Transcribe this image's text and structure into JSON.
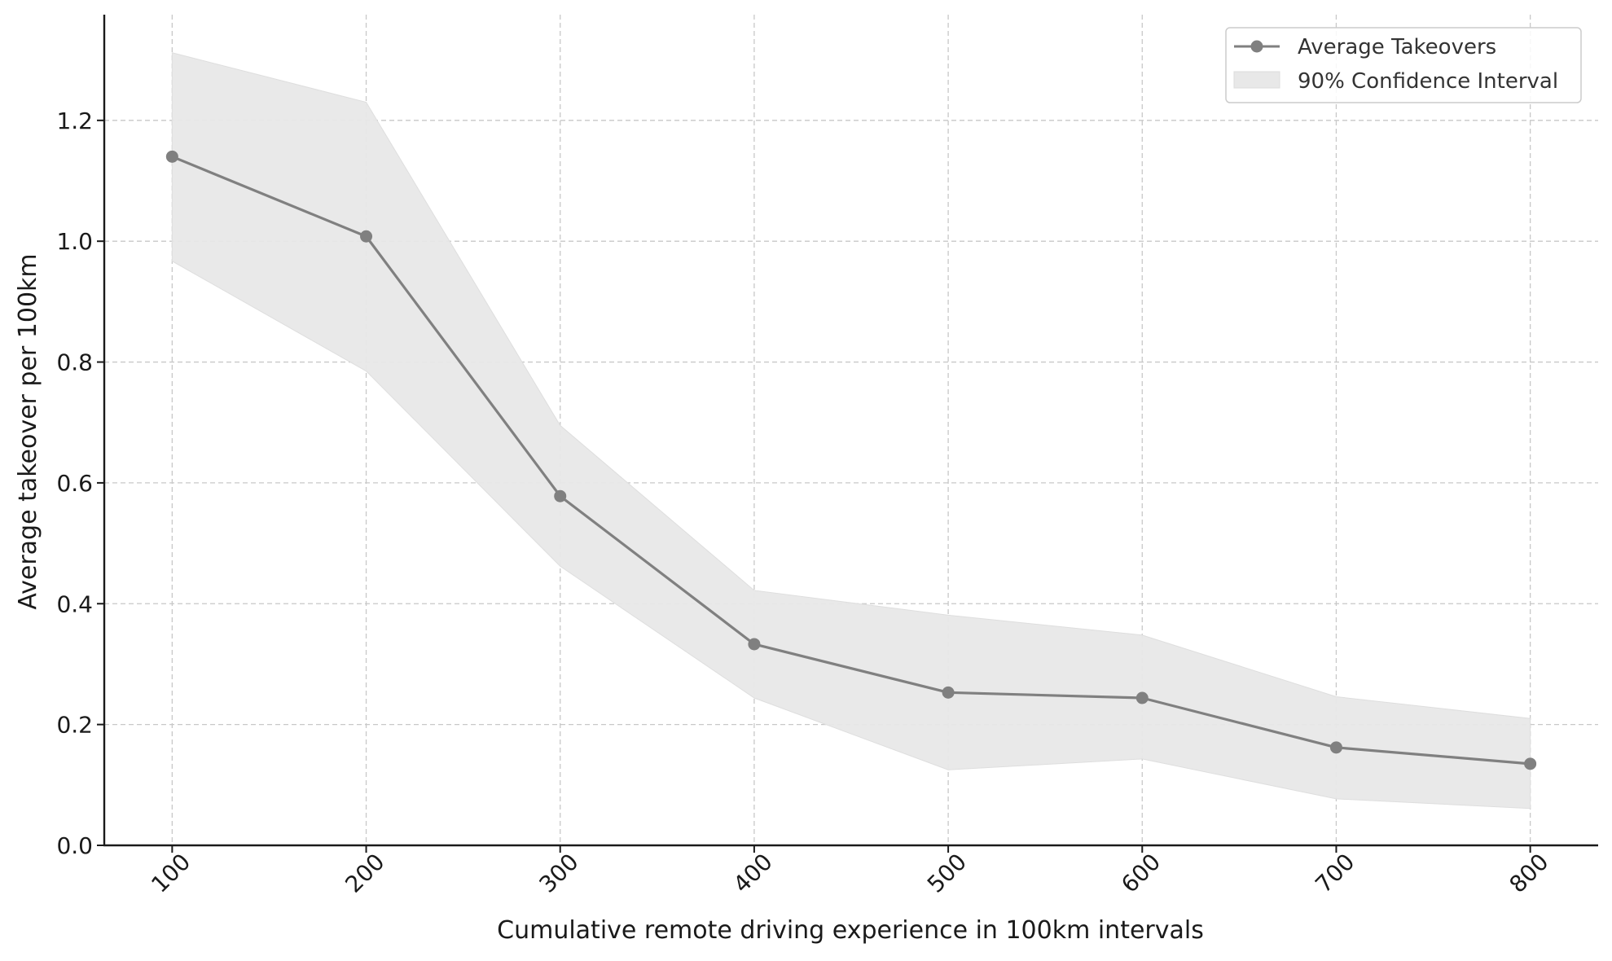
{
  "chart_data": {
    "type": "line",
    "title": "",
    "xlabel": "Cumulative remote driving experience in 100km intervals",
    "ylabel": "Average takeover per 100km",
    "x": [
      100,
      200,
      300,
      400,
      500,
      600,
      700,
      800
    ],
    "x_tick_labels": [
      "100",
      "200",
      "300",
      "400",
      "500",
      "600",
      "700",
      "800"
    ],
    "y_ticks": [
      0.0,
      0.2,
      0.4,
      0.6,
      0.8,
      1.0,
      1.2
    ],
    "y_tick_labels": [
      "0.0",
      "0.2",
      "0.4",
      "0.6",
      "0.8",
      "1.0",
      "1.2"
    ],
    "ylim": [
      0.0,
      1.375
    ],
    "xlim": [
      65,
      835
    ],
    "grid": true,
    "legend_position": "top-right",
    "series": [
      {
        "name": "Average Takeovers",
        "values": [
          1.14,
          1.008,
          0.578,
          0.333,
          0.253,
          0.244,
          0.162,
          0.135
        ],
        "color": "#808080",
        "marker": "circle"
      }
    ],
    "confidence_interval": {
      "name": "90% Confidence Interval",
      "lower": [
        0.967,
        0.785,
        0.462,
        0.244,
        0.125,
        0.143,
        0.077,
        0.061
      ],
      "upper": [
        1.312,
        1.23,
        0.695,
        0.422,
        0.381,
        0.348,
        0.246,
        0.21
      ],
      "color": "#e8e8e8"
    }
  }
}
